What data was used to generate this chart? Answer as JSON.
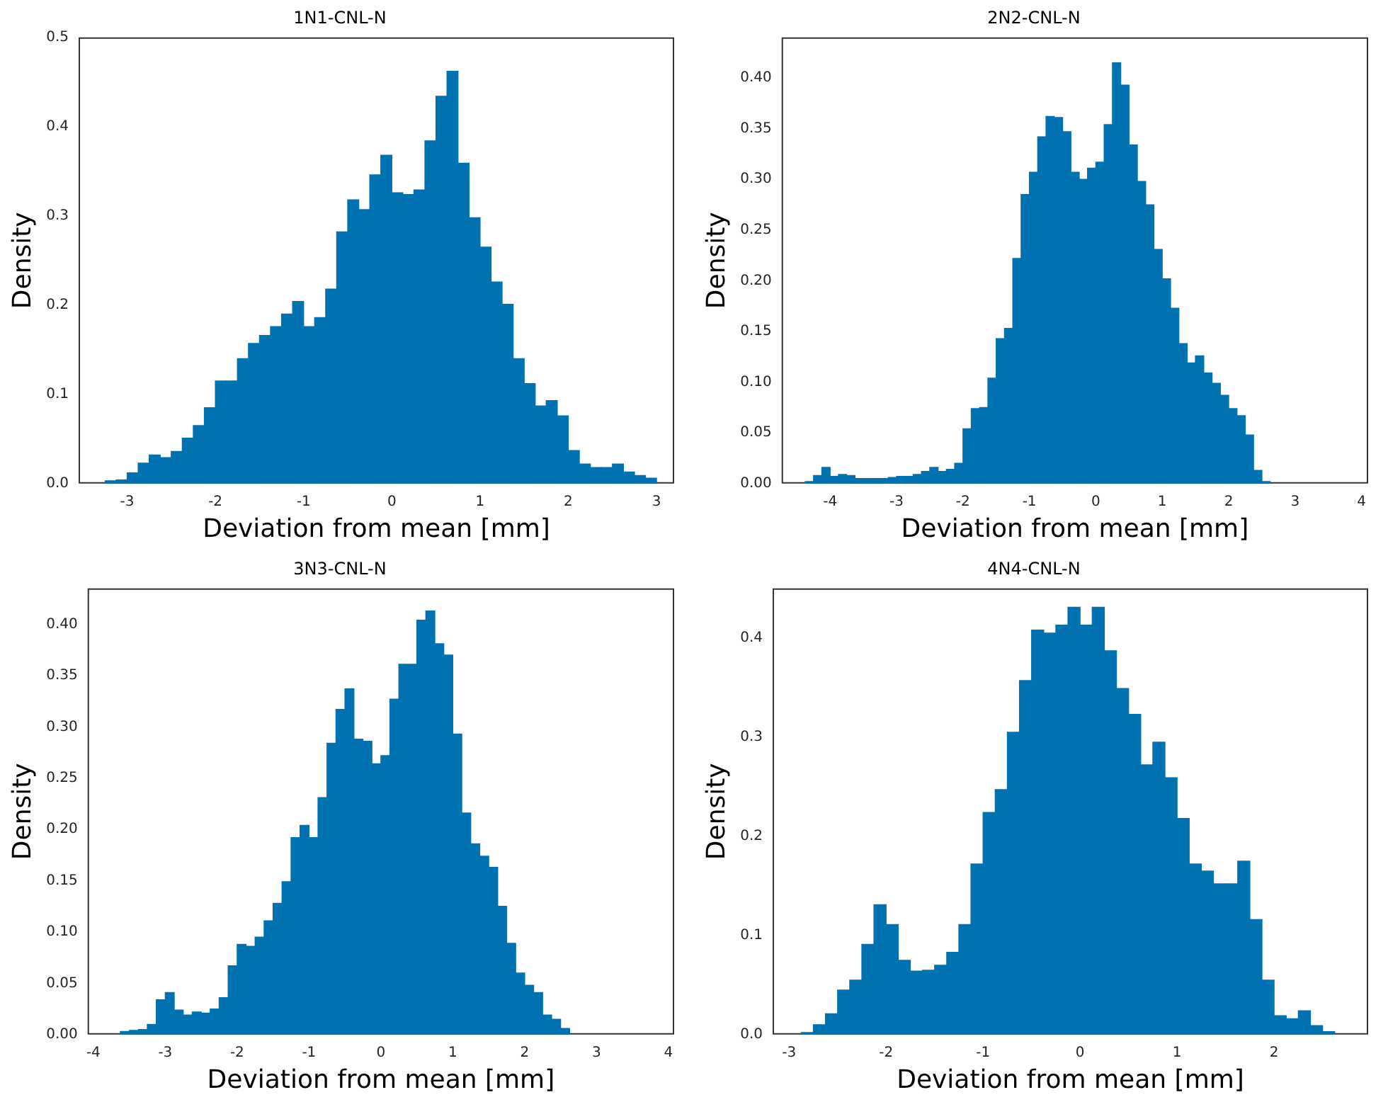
{
  "chart_data": [
    {
      "type": "histogram",
      "title": "1N1-CNL-N",
      "xlabel": "Deviation from mean [mm]",
      "ylabel": "Density",
      "color": "#0072b2",
      "bins": [
        -3.25,
        -3.125,
        -3.0,
        -2.875,
        -2.75,
        -2.625,
        -2.5,
        -2.375,
        -2.25,
        -2.125,
        -2.0,
        -1.875,
        -1.75,
        -1.625,
        -1.5,
        -1.375,
        -1.25,
        -1.125,
        -1.0,
        -0.875,
        -0.75,
        -0.625,
        -0.5,
        -0.375,
        -0.25,
        -0.125,
        0,
        0.125,
        0.25,
        0.375,
        0.5,
        0.625,
        0.75,
        0.875,
        1.0,
        1.125,
        1.25,
        1.375,
        1.5,
        1.625,
        1.75,
        1.875,
        2.0,
        2.125,
        2.25,
        2.375,
        2.5,
        2.625,
        2.75,
        2.875,
        3.0
      ],
      "values": [
        0.003,
        0.004,
        0.012,
        0.023,
        0.032,
        0.029,
        0.036,
        0.051,
        0.065,
        0.085,
        0.115,
        0.115,
        0.14,
        0.157,
        0.166,
        0.176,
        0.19,
        0.204,
        0.176,
        0.186,
        0.218,
        0.282,
        0.318,
        0.307,
        0.346,
        0.368,
        0.326,
        0.324,
        0.329,
        0.384,
        0.434,
        0.462,
        0.359,
        0.298,
        0.265,
        0.226,
        0.201,
        0.14,
        0.112,
        0.087,
        0.093,
        0.076,
        0.037,
        0.022,
        0.018,
        0.018,
        0.022,
        0.013,
        0.009,
        0.006
      ],
      "xlim": [
        -3.55,
        3.2
      ],
      "xticks": [
        -3,
        -2,
        -1,
        0,
        1,
        2,
        3
      ],
      "ylim": [
        0,
        0.5
      ],
      "yticks": [
        {
          "value": 0,
          "label": "0.0"
        },
        0.1,
        0.2,
        0.3,
        0.4,
        0.5
      ]
    },
    {
      "type": "histogram",
      "title": "2N2-CNL-N",
      "xlabel": "Deviation from mean [mm]",
      "ylabel": "Density",
      "color": "#0072b2",
      "bins": [
        -4.375,
        -4.25,
        -4.125,
        -4.0,
        -3.875,
        -3.75,
        -3.625,
        -3.5,
        -3.375,
        -3.25,
        -3.125,
        -3.0,
        -2.875,
        -2.75,
        -2.625,
        -2.5,
        -2.375,
        -2.25,
        -2.125,
        -2.0,
        -1.875,
        -1.75,
        -1.625,
        -1.5,
        -1.375,
        -1.25,
        -1.125,
        -1.0,
        -0.875,
        -0.75,
        -0.625,
        -0.5,
        -0.375,
        -0.25,
        -0.125,
        0,
        0.125,
        0.25,
        0.375,
        0.5,
        0.625,
        0.75,
        0.875,
        1.0,
        1.125,
        1.25,
        1.375,
        1.5,
        1.625,
        1.75,
        1.875,
        2.0,
        2.125,
        2.25,
        2.375,
        2.5,
        2.625
      ],
      "values": [
        0.002,
        0.008,
        0.016,
        0.007,
        0.009,
        0.008,
        0.005,
        0.005,
        0.005,
        0.005,
        0.006,
        0.007,
        0.007,
        0.009,
        0.012,
        0.016,
        0.012,
        0.014,
        0.02,
        0.054,
        0.074,
        0.075,
        0.104,
        0.143,
        0.153,
        0.222,
        0.285,
        0.307,
        0.342,
        0.362,
        0.361,
        0.347,
        0.307,
        0.3,
        0.311,
        0.317,
        0.354,
        0.415,
        0.393,
        0.334,
        0.298,
        0.275,
        0.231,
        0.202,
        0.173,
        0.138,
        0.119,
        0.126,
        0.109,
        0.099,
        0.087,
        0.074,
        0.067,
        0.048,
        0.013,
        0.002
      ],
      "xlim": [
        -4.73,
        4.1
      ],
      "xticks": [
        -4,
        -3,
        -2,
        -1,
        0,
        1,
        2,
        3,
        4
      ],
      "ylim": [
        0,
        0.44
      ],
      "yticks": [
        {
          "value": 0,
          "label": "0.00"
        },
        0.05,
        {
          "value": 0.1,
          "label": "0.10"
        },
        0.15,
        {
          "value": 0.2,
          "label": "0.20"
        },
        0.25,
        {
          "value": 0.3,
          "label": "0.30"
        },
        0.35,
        {
          "value": 0.4,
          "label": "0.40"
        }
      ]
    },
    {
      "type": "histogram",
      "title": "3N3-CNL-N",
      "xlabel": "Deviation from mean [mm]",
      "ylabel": "Density",
      "color": "#0072b2",
      "bins": [
        -3.625,
        -3.5,
        -3.375,
        -3.25,
        -3.125,
        -3.0,
        -2.875,
        -2.75,
        -2.625,
        -2.5,
        -2.375,
        -2.25,
        -2.125,
        -2.0,
        -1.875,
        -1.75,
        -1.625,
        -1.5,
        -1.375,
        -1.25,
        -1.125,
        -1.0,
        -0.875,
        -0.75,
        -0.625,
        -0.5,
        -0.375,
        -0.25,
        -0.125,
        0,
        0.125,
        0.25,
        0.375,
        0.5,
        0.625,
        0.75,
        0.875,
        1.0,
        1.125,
        1.25,
        1.375,
        1.5,
        1.625,
        1.75,
        1.875,
        2.0,
        2.125,
        2.25,
        2.375,
        2.5,
        2.625
      ],
      "values": [
        0.003,
        0.004,
        0.005,
        0.01,
        0.034,
        0.041,
        0.024,
        0.019,
        0.022,
        0.021,
        0.025,
        0.036,
        0.067,
        0.088,
        0.086,
        0.095,
        0.111,
        0.128,
        0.149,
        0.192,
        0.204,
        0.192,
        0.231,
        0.284,
        0.317,
        0.337,
        0.288,
        0.286,
        0.264,
        0.272,
        0.327,
        0.361,
        0.361,
        0.404,
        0.413,
        0.381,
        0.37,
        0.293,
        0.216,
        0.186,
        0.174,
        0.163,
        0.125,
        0.089,
        0.06,
        0.048,
        0.041,
        0.019,
        0.015,
        0.006
      ],
      "xlim": [
        -4.08,
        4.08
      ],
      "xticks": [
        -4,
        -3,
        -2,
        -1,
        0,
        1,
        2,
        3,
        4
      ],
      "ylim": [
        0,
        0.435
      ],
      "yticks": [
        {
          "value": 0,
          "label": "0.00"
        },
        0.05,
        {
          "value": 0.1,
          "label": "0.10"
        },
        0.15,
        {
          "value": 0.2,
          "label": "0.20"
        },
        0.25,
        {
          "value": 0.3,
          "label": "0.30"
        },
        0.35,
        {
          "value": 0.4,
          "label": "0.40"
        }
      ]
    },
    {
      "type": "histogram",
      "title": "4N4-CNL-N",
      "xlabel": "Deviation from mean [mm]",
      "ylabel": "Density",
      "color": "#0072b2",
      "bins": [
        -2.875,
        -2.75,
        -2.625,
        -2.5,
        -2.375,
        -2.25,
        -2.125,
        -2.0,
        -1.875,
        -1.75,
        -1.625,
        -1.5,
        -1.375,
        -1.25,
        -1.125,
        -1.0,
        -0.875,
        -0.75,
        -0.625,
        -0.5,
        -0.375,
        -0.25,
        -0.125,
        0,
        0.125,
        0.25,
        0.375,
        0.5,
        0.625,
        0.75,
        0.875,
        1.0,
        1.125,
        1.25,
        1.375,
        1.5,
        1.625,
        1.75,
        1.875,
        2.0,
        2.125,
        2.25,
        2.375,
        2.5,
        2.625
      ],
      "values": [
        0.002,
        0.01,
        0.021,
        0.045,
        0.055,
        0.091,
        0.131,
        0.111,
        0.075,
        0.064,
        0.065,
        0.07,
        0.083,
        0.111,
        0.172,
        0.224,
        0.247,
        0.305,
        0.357,
        0.408,
        0.405,
        0.413,
        0.431,
        0.413,
        0.431,
        0.387,
        0.349,
        0.323,
        0.272,
        0.295,
        0.259,
        0.218,
        0.172,
        0.165,
        0.152,
        0.152,
        0.175,
        0.116,
        0.055,
        0.019,
        0.016,
        0.024,
        0.009,
        0.003
      ],
      "xlim": [
        -3.17,
        2.97
      ],
      "xticks": [
        -3,
        -2,
        -1,
        0,
        1,
        2
      ],
      "ylim": [
        0,
        0.45
      ],
      "yticks": [
        {
          "value": 0,
          "label": "0.0"
        },
        0.1,
        0.2,
        0.3,
        0.4
      ]
    }
  ]
}
